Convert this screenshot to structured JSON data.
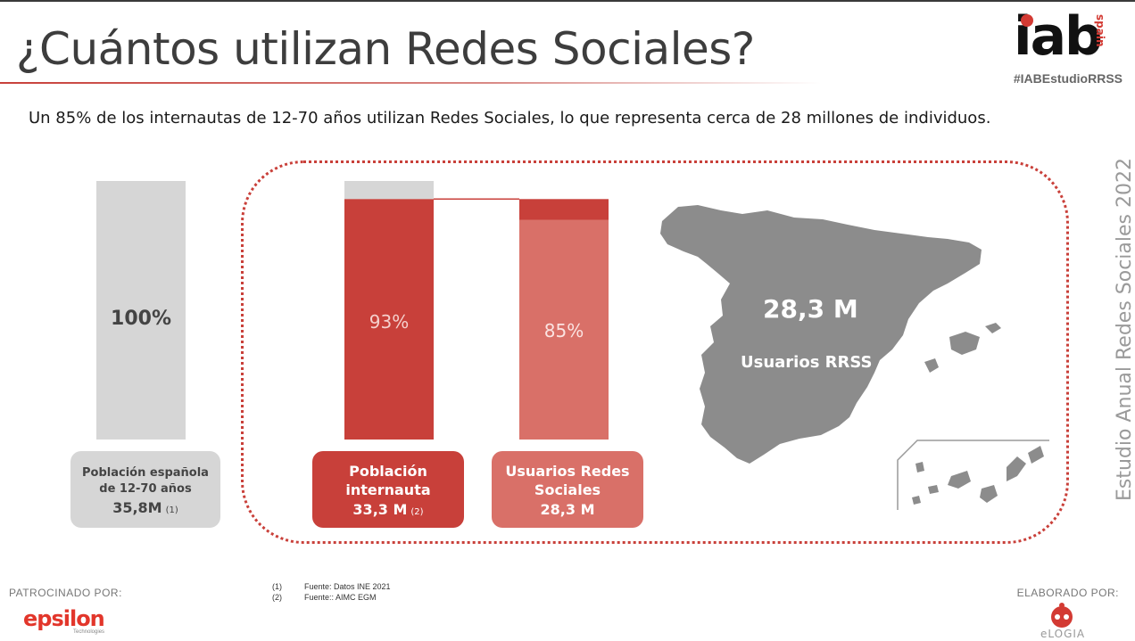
{
  "header": {
    "title": "¿Cuántos utilizan Redes Sociales?",
    "hashtag": "#IABEstudioRRSS",
    "logo_text": "iab",
    "logo_sub": "spain"
  },
  "subtitle": "Un 85% de los internautas de 12-70 años utilizan Redes Sociales, lo que representa cerca de 28 millones de individuos.",
  "vertical_label": "Estudio Anual Redes Sociales 2022",
  "colors": {
    "gray": "#d6d6d6",
    "red": "#c8403a",
    "pink": "#d97068",
    "map": "#8c8c8c"
  },
  "chart_data": {
    "type": "bar",
    "categories": [
      "Población española de 12-70 años",
      "Población internauta",
      "Usuarios Redes Sociales"
    ],
    "values": [
      100,
      93,
      85
    ],
    "data_labels": [
      "100%",
      "93%",
      "85%"
    ],
    "absolute_labels": [
      "35,8M",
      "33,3 M",
      "28,3 M"
    ],
    "ylim": [
      0,
      100
    ]
  },
  "boxes": [
    {
      "line1": "Población española",
      "line2": "de 12-70 años",
      "value": "35,8M",
      "ref": "(1)"
    },
    {
      "line1": "Población",
      "line2": "internauta",
      "value": "33,3 M",
      "ref": "(2)"
    },
    {
      "line1": "Usuarios Redes",
      "line2": "Sociales",
      "value": "28,3 M",
      "ref": ""
    }
  ],
  "map": {
    "value": "28,3 M",
    "label": "Usuarios RRSS"
  },
  "footnotes": [
    {
      "n": "(1)",
      "text": "Fuente: Datos INE 2021"
    },
    {
      "n": "(2)",
      "text": "Fuente:: AIMC EGM"
    }
  ],
  "footer": {
    "sponsor_label": "PATROCINADO POR:",
    "sponsor_name": "epsilon",
    "sponsor_sub": "Technologies",
    "made_by_label": "ELABORADO POR:",
    "made_by_name": "eLOGIA"
  }
}
